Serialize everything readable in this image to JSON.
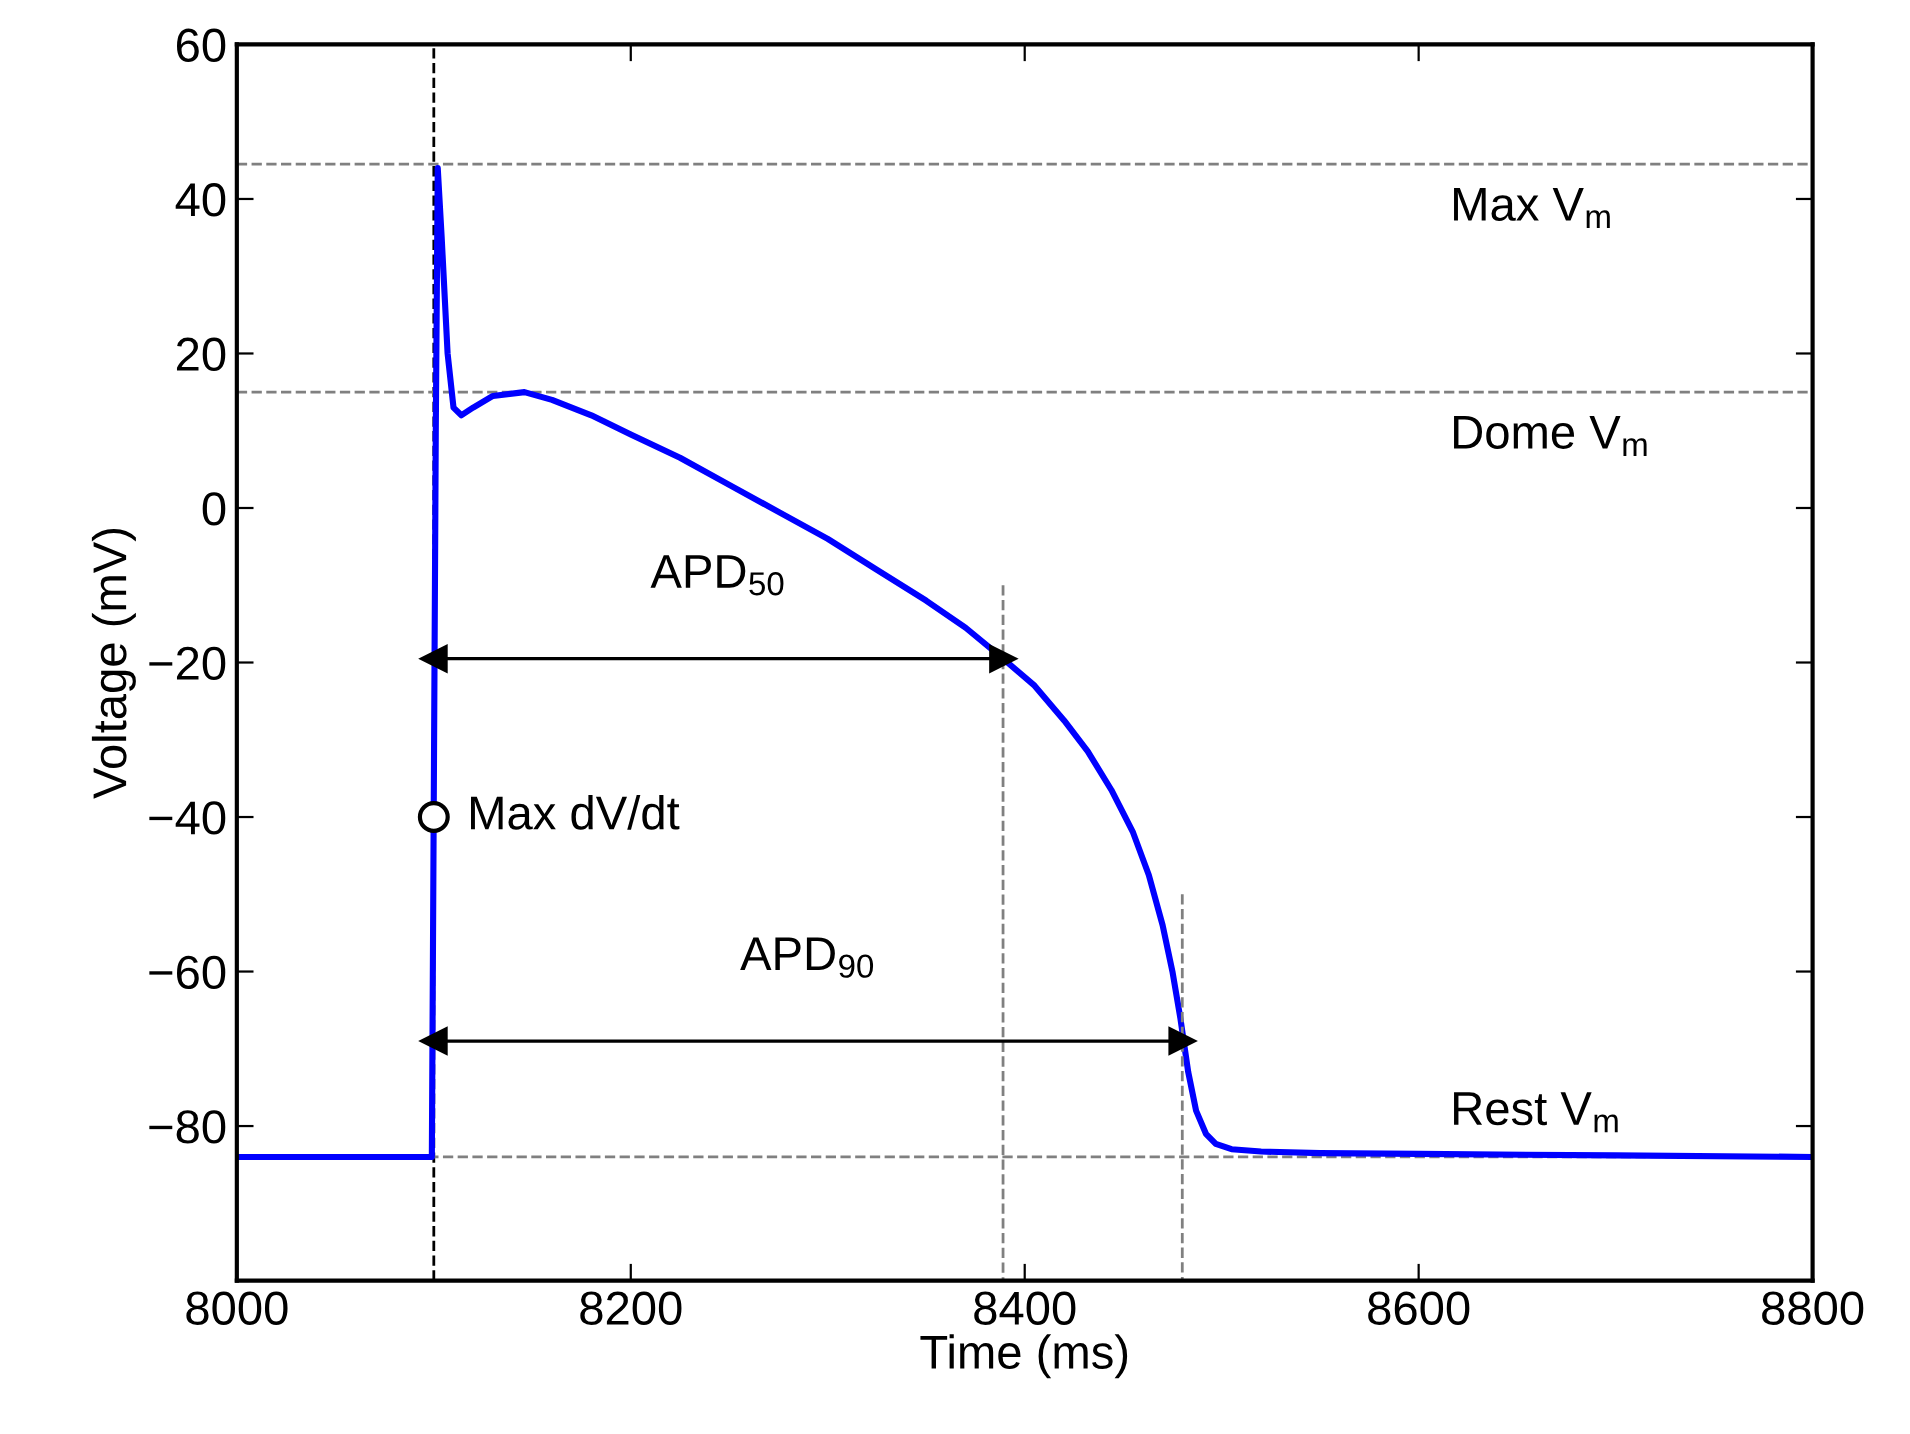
{
  "chart_data": {
    "type": "line",
    "xlabel": "Time (ms)",
    "ylabel": "Voltage (mV)",
    "xlim": [
      8000,
      8800
    ],
    "ylim": [
      -100,
      60
    ],
    "xticks": [
      8000,
      8200,
      8400,
      8600,
      8800
    ],
    "yticks": [
      -80,
      -60,
      -40,
      -20,
      0,
      20,
      40,
      60
    ],
    "grid": false,
    "series": [
      {
        "color": "#0000ff",
        "line_style": "solid",
        "x": [
          8000,
          8050,
          8099,
          8101,
          8102,
          8104,
          8107,
          8110,
          8114,
          8120,
          8130,
          8146,
          8160,
          8180,
          8200,
          8225,
          8250,
          8275,
          8300,
          8325,
          8350,
          8370,
          8389,
          8405,
          8420,
          8432,
          8444,
          8455,
          8463,
          8470,
          8475,
          8479,
          8483,
          8487,
          8492,
          8497,
          8505,
          8520,
          8550,
          8600,
          8700,
          8800
        ],
        "values": [
          -84,
          -84,
          -84,
          10,
          44,
          35,
          20,
          13,
          12,
          13,
          14.5,
          15,
          14,
          12,
          9.5,
          6.5,
          3,
          -0.5,
          -4,
          -8,
          -12,
          -15.5,
          -19.5,
          -23,
          -27.5,
          -31.5,
          -36.5,
          -42,
          -47.5,
          -54,
          -60,
          -66,
          -73,
          -78,
          -81,
          -82.3,
          -83,
          -83.3,
          -83.5,
          -83.6,
          -83.8,
          -84
        ]
      },
      {
        "color": "#808080",
        "line_style": "dashed",
        "x": [
          8389,
          8389
        ],
        "values": [
          -10,
          -100
        ]
      },
      {
        "color": "#808080",
        "line_style": "dashed",
        "x": [
          8480,
          8480
        ],
        "values": [
          -50,
          -100
        ]
      },
      {
        "marker": "triangle",
        "color": "#000000",
        "x": [
          8100,
          8389
        ],
        "values": [
          -19.5,
          -19.5
        ]
      },
      {
        "marker": "triangle",
        "color": "#000000",
        "x": [
          8100,
          8480
        ],
        "values": [
          -69,
          -69
        ]
      },
      {
        "type": "scatter",
        "name": "Max dV/dt",
        "color": "#000000",
        "marker": "circle",
        "x": [
          8100
        ],
        "values": [
          -40
        ]
      }
    ],
    "ref_lines": [
      {
        "axis": "x",
        "value": 8100,
        "color": "#000000",
        "line_style": "dashed"
      },
      {
        "axis": "y",
        "value": 44.5,
        "label": "Max V$_{m}$",
        "color": "#808080",
        "line_style": "dashed"
      },
      {
        "axis": "y",
        "value": 15,
        "label": "Dome V$_{m}$",
        "color": "#808080",
        "line_style": "dashed"
      },
      {
        "axis": "y",
        "value": -84,
        "label": "Rest V$_{m}$",
        "color": "#808080",
        "line_style": "dashed"
      }
    ],
    "annotations": [
      "APD$_{50}$",
      "APD$_{90}$"
    ]
  }
}
